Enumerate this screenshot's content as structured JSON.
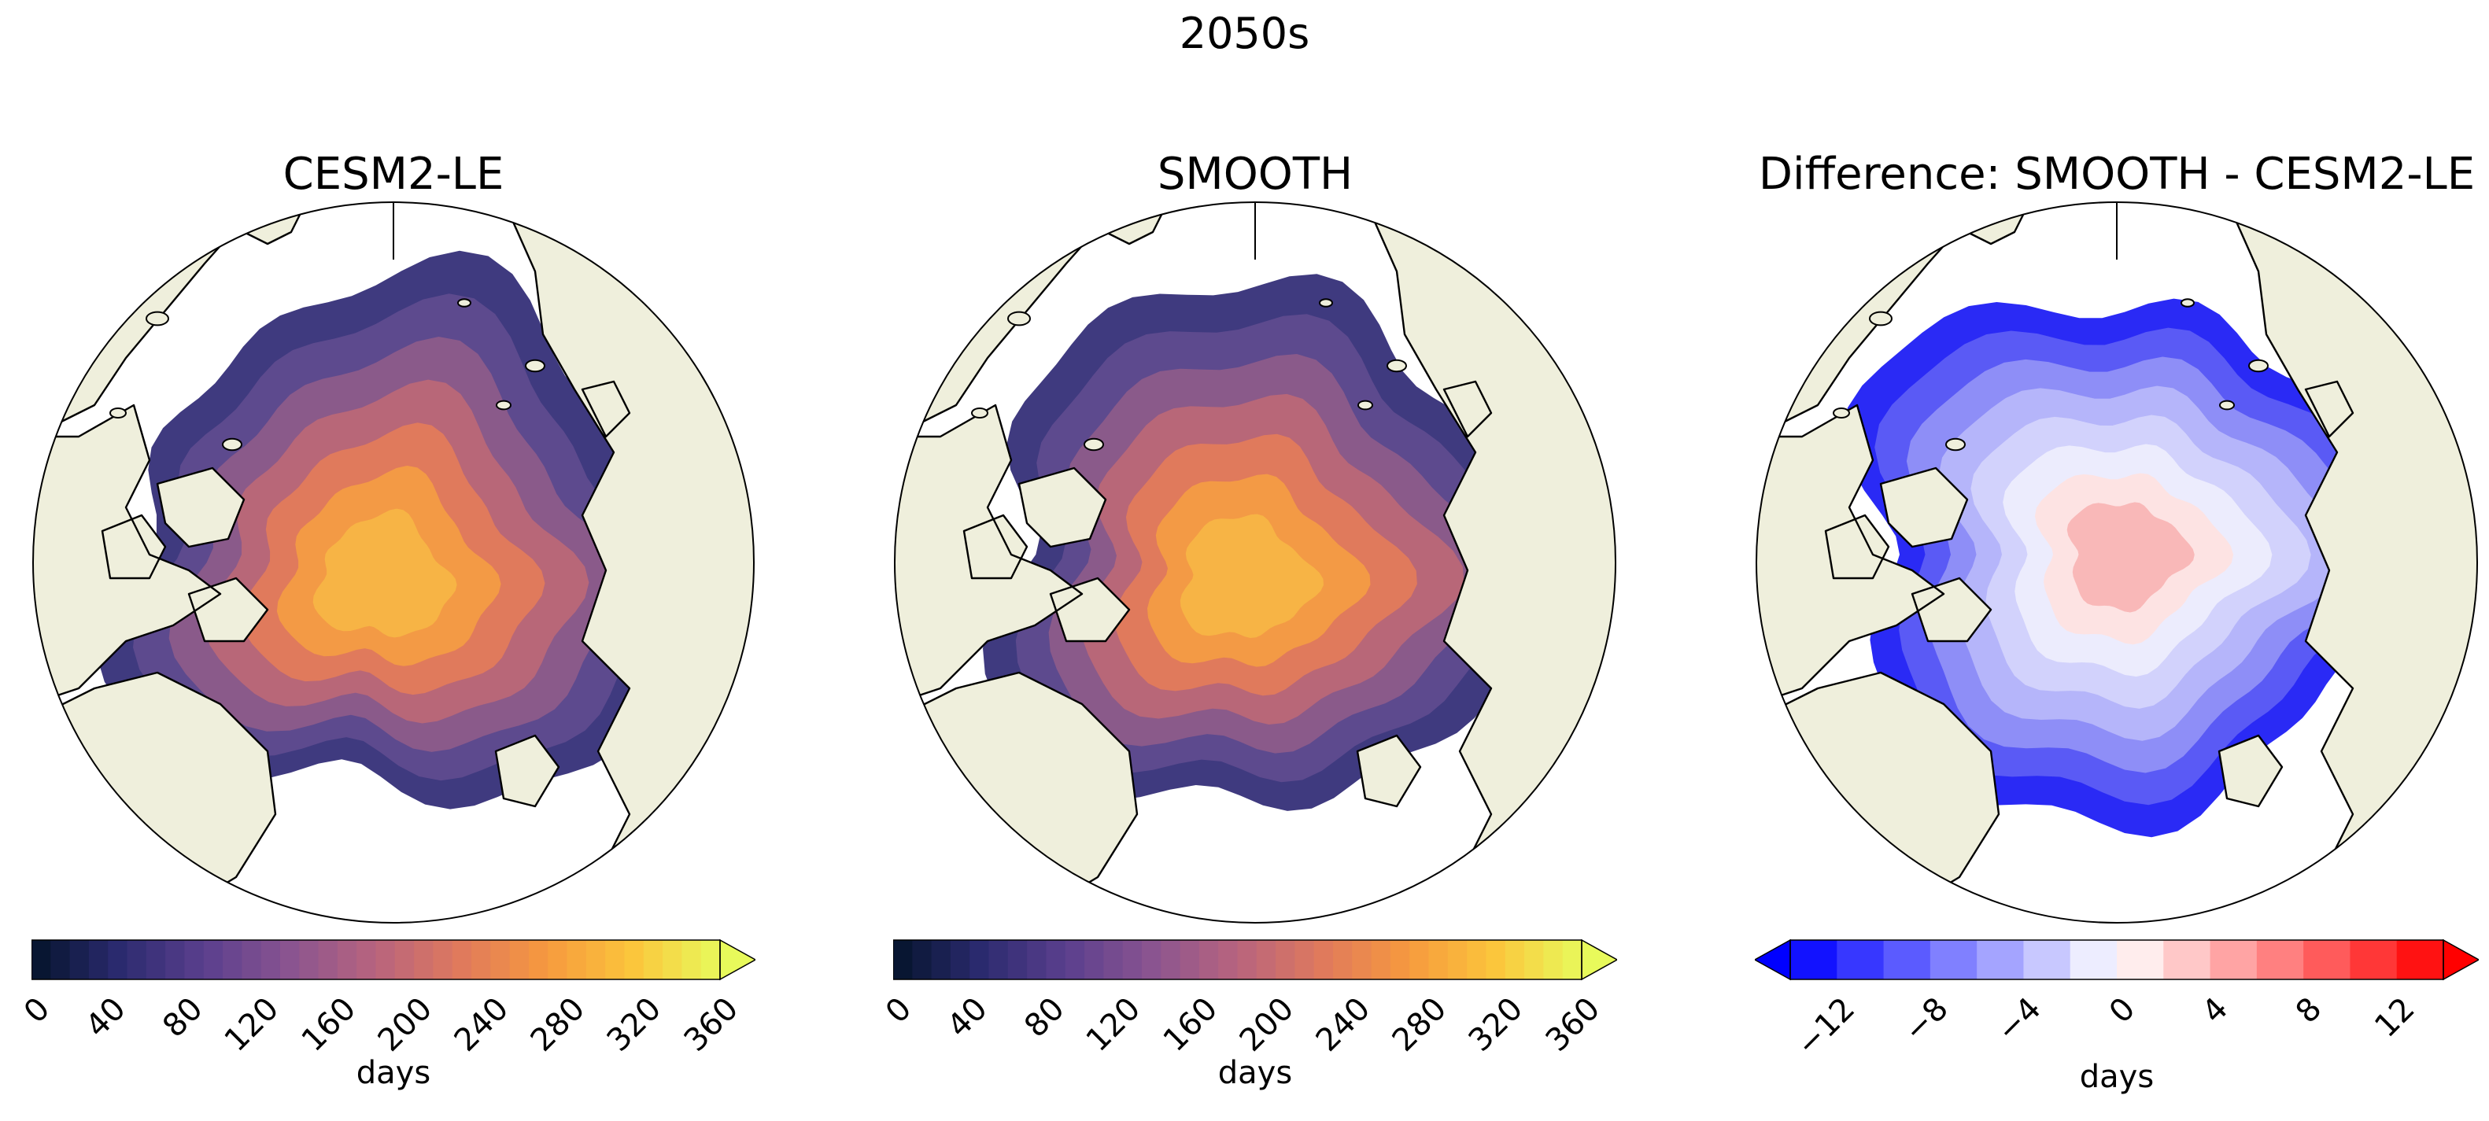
{
  "title": "2050s",
  "panels": [
    {
      "title": "CESM2-LE",
      "field": "length",
      "field_colors": [
        "#3f3a7f",
        "#5d4a8e",
        "#8a5a8a",
        "#b86778",
        "#e07a5c",
        "#f39a45",
        "#f7b445"
      ],
      "colorbar": {
        "label": "days",
        "ticks": [
          "0",
          "40",
          "80",
          "120",
          "160",
          "200",
          "240",
          "280",
          "320",
          "360"
        ],
        "min": 0,
        "max": 360,
        "extend": "max",
        "cmap": "thermal"
      }
    },
    {
      "title": "SMOOTH",
      "field": "length",
      "field_colors": [
        "#3f3a7f",
        "#5d4a8e",
        "#8a5a8a",
        "#b86778",
        "#e07a5c",
        "#f39a45",
        "#f7b445"
      ],
      "colorbar": {
        "label": "days",
        "ticks": [
          "0",
          "40",
          "80",
          "120",
          "160",
          "200",
          "240",
          "280",
          "320",
          "360"
        ],
        "min": 0,
        "max": 360,
        "extend": "max",
        "cmap": "thermal"
      }
    },
    {
      "title": "Difference: SMOOTH - CESM2-LE",
      "field": "difference",
      "field_colors": [
        "#2a2af5",
        "#5a5af5",
        "#8e8ef7",
        "#b5b5fa",
        "#d2d2fc",
        "#ececfd",
        "#fde3e3",
        "#f9b8b8"
      ],
      "colorbar": {
        "label": "days",
        "ticks": [
          "−12",
          "−8",
          "−4",
          "0",
          "4",
          "8",
          "12"
        ],
        "min": -14,
        "max": 14,
        "extend": "both",
        "cmap": "bwr"
      }
    }
  ],
  "colors": {
    "land": "#efefdc",
    "ocean": "#ffffff",
    "coastline": "#000000"
  }
}
